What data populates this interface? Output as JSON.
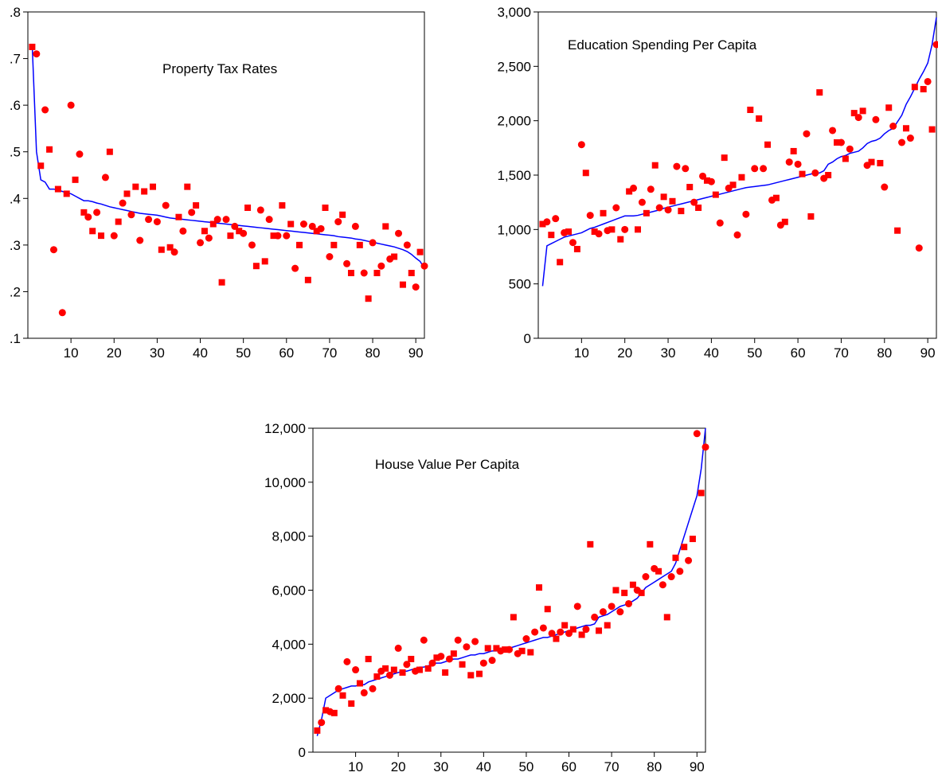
{
  "chart_data": [
    {
      "type": "scatter",
      "title": "Property Tax Rates",
      "x": [
        1,
        2,
        3,
        4,
        5,
        6,
        7,
        8,
        9,
        10,
        11,
        12,
        13,
        14,
        15,
        16,
        17,
        18,
        19,
        20,
        21,
        22,
        23,
        24,
        25,
        26,
        27,
        28,
        29,
        30,
        31,
        32,
        33,
        34,
        35,
        36,
        37,
        38,
        39,
        40,
        41,
        42,
        43,
        44,
        45,
        46,
        47,
        48,
        49,
        50,
        51,
        52,
        53,
        54,
        55,
        56,
        57,
        58,
        59,
        60,
        61,
        62,
        63,
        64,
        65,
        66,
        67,
        68,
        69,
        70,
        71,
        72,
        73,
        74,
        75,
        76,
        77,
        78,
        79,
        80,
        81,
        82,
        83,
        84,
        85,
        86,
        87,
        88,
        89,
        90,
        91,
        92
      ],
      "xlim": [
        0,
        92
      ],
      "ylim": [
        0.1,
        0.8
      ],
      "xticks": [
        10,
        20,
        30,
        40,
        50,
        60,
        70,
        80,
        90
      ],
      "xtick_labels": [
        "10",
        "20",
        "30",
        "40",
        "50",
        "60",
        "70",
        "80",
        "90"
      ],
      "yticks": [
        0.1,
        0.2,
        0.3,
        0.4,
        0.5,
        0.6,
        0.7,
        0.8
      ],
      "ytick_labels": [
        ".1",
        ".2",
        ".3",
        ".4",
        ".5",
        ".6",
        ".7",
        ".8"
      ],
      "series": [
        {
          "values": [
            0.725,
            0.71,
            0.47,
            0.59,
            0.505,
            0.29,
            0.42,
            0.155,
            0.41,
            0.6,
            0.44,
            0.495,
            0.37,
            0.36,
            0.33,
            0.37,
            0.32,
            0.445,
            0.5,
            0.32,
            0.35,
            0.39,
            0.41,
            0.365,
            0.425,
            0.31,
            0.415,
            0.355,
            0.425,
            0.35,
            0.29,
            0.385,
            0.295,
            0.285,
            0.36,
            0.33,
            0.425,
            0.37,
            0.385,
            0.305,
            0.33,
            0.315,
            0.345,
            0.355,
            0.22,
            0.355,
            0.32,
            0.34,
            0.33,
            0.325,
            0.38,
            0.3,
            0.255,
            0.375,
            0.265,
            0.355,
            0.32,
            0.32,
            0.385,
            0.32,
            0.345,
            0.25,
            0.3,
            0.345,
            0.225,
            0.34,
            0.33,
            0.335,
            0.38,
            0.275,
            0.3,
            0.35,
            0.365,
            0.26,
            0.24,
            0.34,
            0.3,
            0.24,
            0.185,
            0.305,
            0.24,
            0.255,
            0.34,
            0.27,
            0.275,
            0.325,
            0.215,
            0.3,
            0.24,
            0.21,
            0.285,
            0.255
          ]
        },
        {
          "values": [
            0.73,
            0.5,
            0.44,
            0.435,
            0.42,
            0.42,
            0.418,
            0.415,
            0.412,
            0.41,
            0.405,
            0.4,
            0.395,
            0.395,
            0.393,
            0.39,
            0.388,
            0.385,
            0.382,
            0.38,
            0.378,
            0.376,
            0.374,
            0.372,
            0.37,
            0.368,
            0.367,
            0.366,
            0.365,
            0.364,
            0.362,
            0.36,
            0.358,
            0.357,
            0.356,
            0.355,
            0.354,
            0.353,
            0.352,
            0.351,
            0.35,
            0.349,
            0.348,
            0.347,
            0.346,
            0.345,
            0.344,
            0.343,
            0.342,
            0.341,
            0.34,
            0.339,
            0.338,
            0.337,
            0.336,
            0.335,
            0.334,
            0.333,
            0.332,
            0.331,
            0.33,
            0.329,
            0.328,
            0.327,
            0.326,
            0.325,
            0.324,
            0.323,
            0.322,
            0.321,
            0.32,
            0.318,
            0.317,
            0.316,
            0.315,
            0.313,
            0.312,
            0.31,
            0.308,
            0.306,
            0.304,
            0.302,
            0.3,
            0.298,
            0.296,
            0.293,
            0.29,
            0.286,
            0.28,
            0.272,
            0.265,
            0.25
          ]
        }
      ]
    },
    {
      "type": "scatter",
      "title": "Education Spending Per Capita",
      "x": [
        1,
        2,
        3,
        4,
        5,
        6,
        7,
        8,
        9,
        10,
        11,
        12,
        13,
        14,
        15,
        16,
        17,
        18,
        19,
        20,
        21,
        22,
        23,
        24,
        25,
        26,
        27,
        28,
        29,
        30,
        31,
        32,
        33,
        34,
        35,
        36,
        37,
        38,
        39,
        40,
        41,
        42,
        43,
        44,
        45,
        46,
        47,
        48,
        49,
        50,
        51,
        52,
        53,
        54,
        55,
        56,
        57,
        58,
        59,
        60,
        61,
        62,
        63,
        64,
        65,
        66,
        67,
        68,
        69,
        70,
        71,
        72,
        73,
        74,
        75,
        76,
        77,
        78,
        79,
        80,
        81,
        82,
        83,
        84,
        85,
        86,
        87,
        88,
        89,
        90,
        91,
        92
      ],
      "xlim": [
        0,
        92
      ],
      "ylim": [
        0,
        3000
      ],
      "xticks": [
        10,
        20,
        30,
        40,
        50,
        60,
        70,
        80,
        90
      ],
      "xtick_labels": [
        "10",
        "20",
        "30",
        "40",
        "50",
        "60",
        "70",
        "80",
        "90"
      ],
      "yticks": [
        0,
        500,
        1000,
        1500,
        2000,
        2500,
        3000
      ],
      "ytick_labels": [
        "0",
        "500",
        "1,000",
        "1,500",
        "2,000",
        "2,500",
        "3,000"
      ],
      "series": [
        {
          "values": [
            1050,
            1070,
            950,
            1100,
            700,
            970,
            980,
            880,
            820,
            1780,
            1520,
            1130,
            980,
            960,
            1150,
            990,
            1000,
            1200,
            910,
            1000,
            1350,
            1380,
            1000,
            1250,
            1150,
            1370,
            1590,
            1200,
            1300,
            1180,
            1260,
            1580,
            1170,
            1560,
            1390,
            1250,
            1200,
            1490,
            1450,
            1440,
            1320,
            1060,
            1660,
            1380,
            1410,
            950,
            1480,
            1140,
            2100,
            1560,
            2020,
            1560,
            1780,
            1270,
            1290,
            1040,
            1070,
            1620,
            1720,
            1600,
            1510,
            1880,
            1120,
            1520,
            2260,
            1470,
            1500,
            1910,
            1800,
            1800,
            1650,
            1740,
            2070,
            2030,
            2090,
            1590,
            1620,
            2010,
            1610,
            1390,
            2120,
            1950,
            990,
            1800,
            1930,
            1840,
            2310,
            830,
            2290,
            2360,
            1920,
            2700
          ]
        },
        {
          "values": [
            480,
            850,
            870,
            890,
            910,
            930,
            940,
            950,
            960,
            970,
            990,
            1010,
            1020,
            1035,
            1050,
            1065,
            1080,
            1095,
            1110,
            1125,
            1125,
            1125,
            1130,
            1140,
            1150,
            1160,
            1170,
            1180,
            1195,
            1205,
            1215,
            1225,
            1235,
            1245,
            1255,
            1265,
            1275,
            1285,
            1295,
            1305,
            1315,
            1325,
            1335,
            1345,
            1355,
            1365,
            1375,
            1385,
            1390,
            1395,
            1400,
            1405,
            1410,
            1420,
            1430,
            1440,
            1450,
            1460,
            1470,
            1480,
            1490,
            1500,
            1510,
            1515,
            1520,
            1540,
            1600,
            1620,
            1650,
            1670,
            1680,
            1700,
            1710,
            1720,
            1750,
            1790,
            1810,
            1820,
            1840,
            1880,
            1910,
            1930,
            1990,
            2050,
            2150,
            2220,
            2300,
            2380,
            2450,
            2530,
            2700,
            2950
          ]
        }
      ]
    },
    {
      "type": "scatter",
      "title": "House Value Per Capita",
      "x": [
        1,
        2,
        3,
        4,
        5,
        6,
        7,
        8,
        9,
        10,
        11,
        12,
        13,
        14,
        15,
        16,
        17,
        18,
        19,
        20,
        21,
        22,
        23,
        24,
        25,
        26,
        27,
        28,
        29,
        30,
        31,
        32,
        33,
        34,
        35,
        36,
        37,
        38,
        39,
        40,
        41,
        42,
        43,
        44,
        45,
        46,
        47,
        48,
        49,
        50,
        51,
        52,
        53,
        54,
        55,
        56,
        57,
        58,
        59,
        60,
        61,
        62,
        63,
        64,
        65,
        66,
        67,
        68,
        69,
        70,
        71,
        72,
        73,
        74,
        75,
        76,
        77,
        78,
        79,
        80,
        81,
        82,
        83,
        84,
        85,
        86,
        87,
        88,
        89,
        90,
        91,
        92
      ],
      "xlim": [
        0,
        92
      ],
      "ylim": [
        0,
        12000
      ],
      "xticks": [
        10,
        20,
        30,
        40,
        50,
        60,
        70,
        80,
        90
      ],
      "xtick_labels": [
        "10",
        "20",
        "30",
        "40",
        "50",
        "60",
        "70",
        "80",
        "90"
      ],
      "yticks": [
        0,
        2000,
        4000,
        6000,
        8000,
        10000,
        12000
      ],
      "ytick_labels": [
        "0",
        "2,000",
        "4,000",
        "6,000",
        "8,000",
        "10,000",
        "12,000"
      ],
      "series": [
        {
          "values": [
            800,
            1100,
            1550,
            1500,
            1450,
            2350,
            2100,
            3350,
            1800,
            3050,
            2550,
            2200,
            3450,
            2350,
            2800,
            3000,
            3100,
            2850,
            3050,
            3850,
            2950,
            3250,
            3450,
            3000,
            3050,
            4150,
            3100,
            3300,
            3500,
            3550,
            2950,
            3450,
            3650,
            4150,
            3250,
            3900,
            2850,
            4100,
            2900,
            3300,
            3850,
            3400,
            3850,
            3750,
            3800,
            3800,
            5000,
            3650,
            3750,
            4200,
            3700,
            4450,
            6100,
            4600,
            5300,
            4400,
            4200,
            4450,
            4700,
            4400,
            4550,
            5400,
            4350,
            4550,
            7700,
            5000,
            4500,
            5200,
            4700,
            5400,
            6000,
            5200,
            5900,
            5500,
            6200,
            6000,
            5900,
            6500,
            7700,
            6800,
            6700,
            6200,
            5000,
            6500,
            7200,
            6700,
            7600,
            7100,
            7900,
            11800,
            9600,
            11300
          ]
        },
        {
          "values": [
            600,
            1200,
            2000,
            2100,
            2200,
            2300,
            2350,
            2400,
            2450,
            2450,
            2500,
            2500,
            2600,
            2650,
            2700,
            2750,
            2800,
            2850,
            2900,
            2950,
            3000,
            3000,
            3050,
            3100,
            3150,
            3150,
            3200,
            3250,
            3300,
            3300,
            3350,
            3400,
            3450,
            3450,
            3500,
            3550,
            3600,
            3600,
            3650,
            3650,
            3700,
            3750,
            3750,
            3800,
            3850,
            3850,
            3900,
            3950,
            4000,
            4050,
            4100,
            4150,
            4200,
            4250,
            4250,
            4300,
            4350,
            4400,
            4450,
            4500,
            4550,
            4600,
            4650,
            4700,
            4700,
            4750,
            5000,
            5050,
            5100,
            5200,
            5300,
            5400,
            5450,
            5500,
            5600,
            5700,
            5900,
            6100,
            6200,
            6300,
            6400,
            6500,
            6600,
            6700,
            7000,
            7500,
            8000,
            8500,
            9000,
            9500,
            10500,
            12000
          ]
        }
      ]
    }
  ]
}
